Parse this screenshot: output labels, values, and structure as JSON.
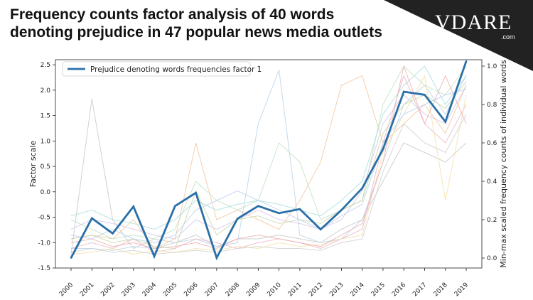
{
  "header": {
    "title_line1": "Frequency counts factor analysis of 40 words",
    "title_line2": "denoting prejudice in 47 popular news media outlets"
  },
  "brand": {
    "logo_text": "VDARE",
    "logo_sub": ".com",
    "bg_color": "#222222"
  },
  "chart_data": {
    "type": "line",
    "title": "",
    "xlabel": "",
    "ylabel": "Factor scale",
    "y2label": "Min-max scaled frequency counts of individual words",
    "x": [
      2000,
      2001,
      2002,
      2003,
      2004,
      2005,
      2006,
      2007,
      2008,
      2009,
      2010,
      2011,
      2012,
      2013,
      2014,
      2015,
      2016,
      2017,
      2018,
      2019
    ],
    "ylim": [
      -1.5,
      2.6
    ],
    "yticks": [
      -1.5,
      -1.0,
      -0.5,
      0.0,
      0.5,
      1.0,
      1.5,
      2.0,
      2.5
    ],
    "y2lim": [
      -0.0,
      1.0
    ],
    "y2ticks": [
      0.0,
      0.2,
      0.4,
      0.6,
      0.8,
      1.0
    ],
    "grid": false,
    "legend_position": "top-left",
    "series": [
      {
        "name": "Prejudice denoting words frequencies factor 1",
        "color": "#2a6fa8",
        "axis": "left",
        "values": [
          -1.3,
          -0.52,
          -0.82,
          -0.29,
          -1.27,
          -0.28,
          -0.02,
          -1.3,
          -0.53,
          -0.28,
          -0.42,
          -0.34,
          -0.74,
          -0.36,
          0.07,
          0.84,
          1.97,
          1.91,
          1.38,
          2.57
        ]
      }
    ],
    "background_series_note_color": "#c9c9c9",
    "background_series": [
      {
        "color": "#c9c9c9",
        "values": [
          0.02,
          0.83,
          0.2,
          0.05,
          0.1,
          0.08,
          0.12,
          0.06,
          0.1,
          0.1,
          0.12,
          0.1,
          0.08,
          0.15,
          0.2,
          0.4,
          0.6,
          0.55,
          0.5,
          0.6
        ]
      },
      {
        "color": "#b9d3ea",
        "values": [
          0.05,
          0.05,
          0.04,
          0.06,
          0.05,
          0.08,
          0.1,
          0.06,
          0.08,
          0.7,
          0.98,
          0.12,
          0.08,
          0.1,
          0.2,
          0.5,
          0.8,
          0.9,
          0.75,
          0.95
        ]
      },
      {
        "color": "#f2c8a0",
        "values": [
          0.1,
          0.12,
          0.1,
          0.2,
          0.05,
          0.1,
          0.6,
          0.2,
          0.25,
          0.2,
          0.15,
          0.3,
          0.5,
          0.9,
          0.95,
          0.6,
          0.7,
          0.8,
          0.65,
          0.9
        ]
      },
      {
        "color": "#bfe3c1",
        "values": [
          0.2,
          0.15,
          0.1,
          0.12,
          0.1,
          0.15,
          0.4,
          0.3,
          0.25,
          0.3,
          0.6,
          0.5,
          0.2,
          0.25,
          0.3,
          0.8,
          1.0,
          0.9,
          0.85,
          1.0
        ]
      },
      {
        "color": "#e9b7c9",
        "values": [
          0.05,
          0.08,
          0.05,
          0.1,
          0.03,
          0.05,
          0.1,
          0.08,
          0.05,
          0.08,
          0.1,
          0.08,
          0.05,
          0.1,
          0.15,
          0.6,
          0.95,
          0.7,
          0.6,
          0.8
        ]
      },
      {
        "color": "#d8c6ea",
        "values": [
          0.15,
          0.2,
          0.18,
          0.15,
          0.12,
          0.1,
          0.2,
          0.15,
          0.2,
          0.25,
          0.2,
          0.18,
          0.15,
          0.2,
          0.35,
          0.7,
          0.85,
          0.75,
          0.7,
          0.9
        ]
      },
      {
        "color": "#f5e0a8",
        "values": [
          0.02,
          0.03,
          0.05,
          0.02,
          0.04,
          0.03,
          0.05,
          0.04,
          0.06,
          0.05,
          0.08,
          0.06,
          0.07,
          0.1,
          0.12,
          0.55,
          0.75,
          0.95,
          0.3,
          0.85
        ]
      },
      {
        "color": "#a9dede",
        "values": [
          0.22,
          0.25,
          0.2,
          0.18,
          0.15,
          0.2,
          0.3,
          0.25,
          0.28,
          0.3,
          0.28,
          0.25,
          0.22,
          0.3,
          0.4,
          0.75,
          0.9,
          1.0,
          0.8,
          0.95
        ]
      },
      {
        "color": "#f0b0b0",
        "values": [
          0.08,
          0.1,
          0.06,
          0.08,
          0.05,
          0.06,
          0.08,
          0.05,
          0.1,
          0.12,
          0.1,
          0.08,
          0.06,
          0.12,
          0.18,
          0.5,
          1.0,
          0.7,
          0.95,
          0.7
        ]
      },
      {
        "color": "#c8d8a8",
        "values": [
          0.1,
          0.12,
          0.08,
          0.1,
          0.06,
          0.05,
          0.35,
          0.12,
          0.2,
          0.22,
          0.18,
          0.2,
          0.18,
          0.25,
          0.3,
          0.65,
          0.8,
          0.85,
          0.78,
          0.92
        ]
      },
      {
        "color": "#d0d0d0",
        "values": [
          0.03,
          0.05,
          0.03,
          0.04,
          0.02,
          0.03,
          0.04,
          0.03,
          0.05,
          0.06,
          0.05,
          0.05,
          0.04,
          0.08,
          0.1,
          0.45,
          0.7,
          0.6,
          0.55,
          0.75
        ]
      },
      {
        "color": "#bcd0f0",
        "values": [
          0.12,
          0.1,
          0.15,
          0.1,
          0.08,
          0.12,
          0.25,
          0.3,
          0.35,
          0.3,
          0.25,
          0.2,
          0.15,
          0.22,
          0.28,
          0.6,
          0.75,
          0.8,
          0.85,
          0.88
        ]
      }
    ]
  }
}
